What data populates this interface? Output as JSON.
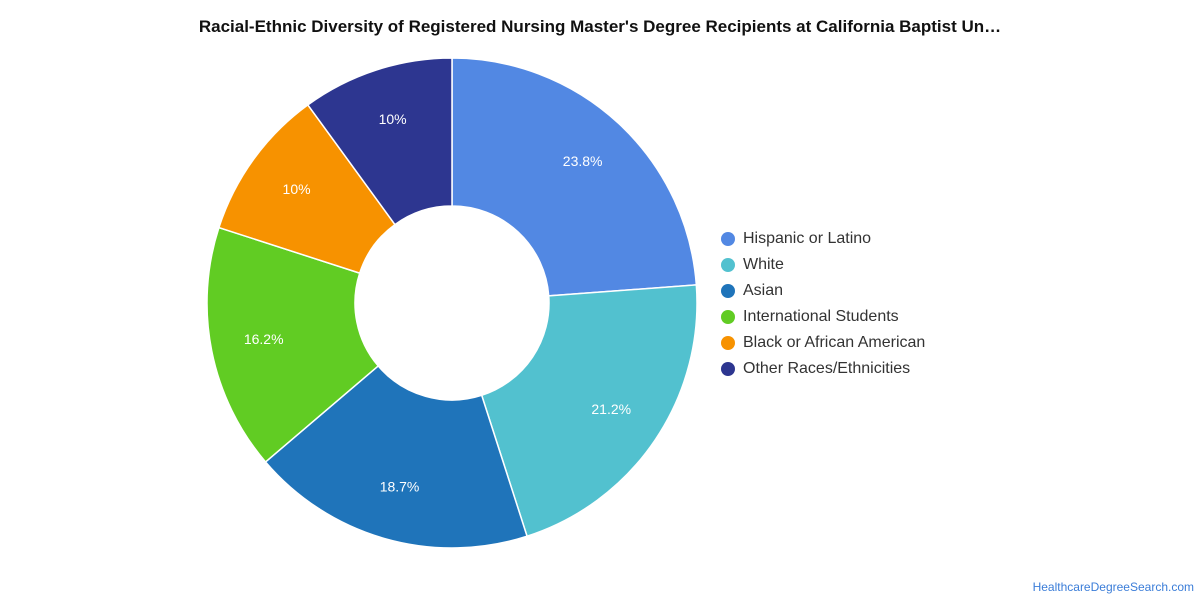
{
  "chart_data": {
    "type": "pie",
    "style": "donut",
    "title": "Racial-Ethnic Diversity of Registered Nursing Master's Degree Recipients at California Baptist Un…",
    "labels": [
      "Hispanic or Latino",
      "White",
      "Asian",
      "International Students",
      "Black or African American",
      "Other Races/Ethnicities"
    ],
    "values": [
      23.8,
      21.2,
      18.7,
      16.2,
      10,
      10
    ],
    "value_labels": [
      "23.8%",
      "21.2%",
      "18.7%",
      "16.2%",
      "10%",
      "10%"
    ],
    "colors": [
      "#5288e3",
      "#52c1cf",
      "#1f74ba",
      "#61cc23",
      "#f79200",
      "#2d3690"
    ],
    "legend_position": "right",
    "start_angle": "top, clockwise"
  },
  "source": "HealthcareDegreeSearch.com"
}
